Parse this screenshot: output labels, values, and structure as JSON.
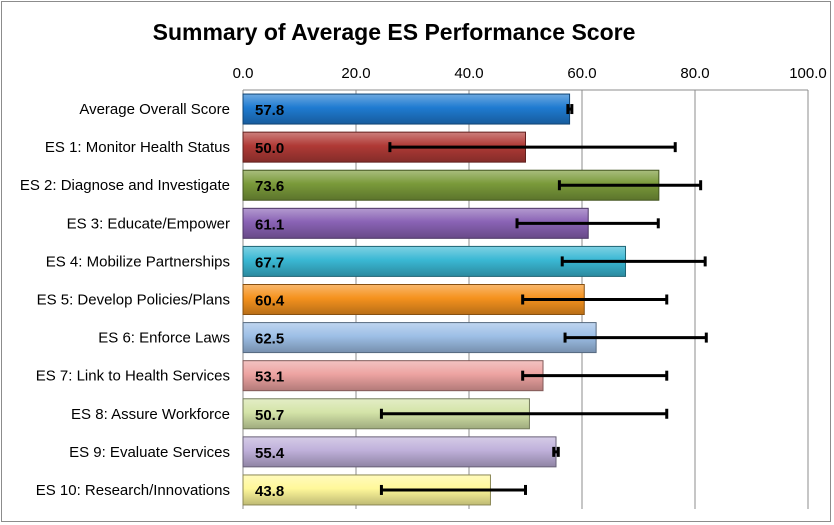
{
  "chart_data": {
    "type": "bar",
    "orientation": "horizontal",
    "title": "Summary of Average ES Performance Score",
    "xlabel": "",
    "ylabel": "",
    "xlim": [
      0,
      100
    ],
    "ticks": [
      "0.0",
      "20.0",
      "40.0",
      "60.0",
      "80.0",
      "100.0"
    ],
    "tick_values": [
      0,
      20,
      40,
      60,
      80,
      100
    ],
    "grid": "vertical major gridlines",
    "legend": "none",
    "categories": [
      "Average Overall Score",
      "ES 1: Monitor Health Status",
      "ES 2: Diagnose and Investigate",
      "ES 3: Educate/Empower",
      "ES 4: Mobilize Partnerships",
      "ES 5: Develop Policies/Plans",
      "ES 6: Enforce Laws",
      "ES 7: Link to Health Services",
      "ES 8: Assure Workforce",
      "ES 9: Evaluate Services",
      "ES 10: Research/Innovations"
    ],
    "values": [
      57.8,
      50.0,
      73.6,
      61.1,
      67.7,
      60.4,
      62.5,
      53.1,
      50.7,
      55.4,
      43.8
    ],
    "value_labels": [
      "57.8",
      "50.0",
      "73.6",
      "61.1",
      "67.7",
      "60.4",
      "62.5",
      "53.1",
      "50.7",
      "55.4",
      "43.8"
    ],
    "error_bars": [
      [
        57.5,
        58.2
      ],
      [
        26.0,
        76.5
      ],
      [
        56.0,
        81.0
      ],
      [
        48.5,
        73.5
      ],
      [
        56.5,
        81.8
      ],
      [
        49.5,
        75.0
      ],
      [
        57.0,
        82.0
      ],
      [
        49.5,
        75.0
      ],
      [
        24.5,
        75.0
      ],
      [
        55.0,
        55.8
      ],
      [
        24.5,
        50.0
      ]
    ],
    "colors": [
      "#1f7bd1",
      "#b03a36",
      "#7a9a3a",
      "#8a63b5",
      "#3ab8d4",
      "#f5921e",
      "#9dbfe6",
      "#eda3a1",
      "#d4e4a8",
      "#bfb0da",
      "#fff89a"
    ]
  }
}
